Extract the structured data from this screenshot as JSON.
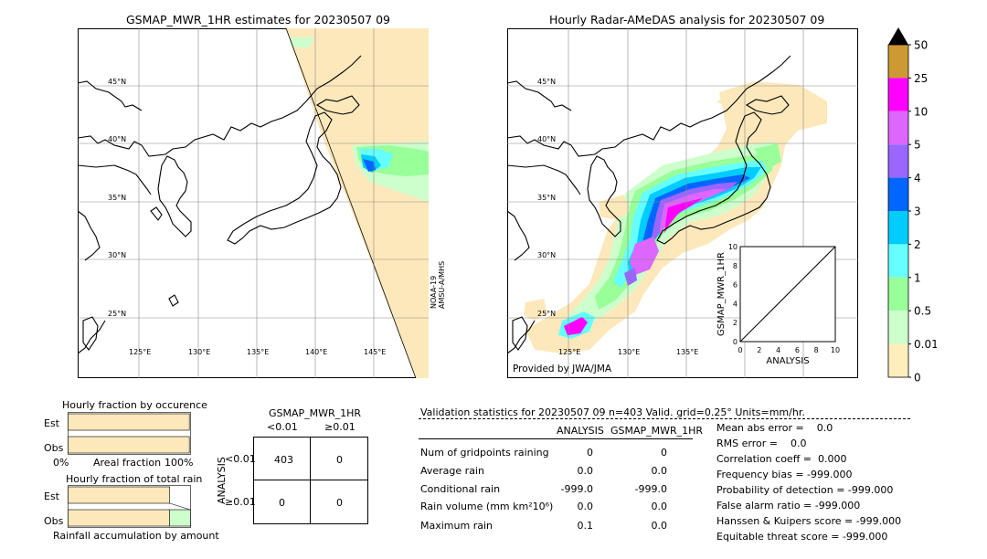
{
  "left_map": {
    "title": "GSMAP_MWR_1HR estimates for 20230507 09",
    "lat_labels": [
      "45°N",
      "40°N",
      "35°N",
      "30°N",
      "25°N"
    ],
    "lon_labels": [
      "125°E",
      "130°E",
      "135°E",
      "140°E",
      "145°E"
    ],
    "sensor_label": "NOAA-19\nAMSU-A/MHS"
  },
  "right_map": {
    "title": "Hourly Radar-AMeDAS analysis for 20230507 09",
    "lat_labels": [
      "45°N",
      "40°N",
      "35°N",
      "30°N",
      "25°N"
    ],
    "lon_labels": [
      "125°E",
      "130°E",
      "135°E"
    ],
    "credit": "Provided by JWA/JMA"
  },
  "colorbar": {
    "labels": [
      "50",
      "25",
      "10",
      "5",
      "4",
      "3",
      "2",
      "1",
      "0.5",
      "0.01",
      "0"
    ],
    "colors": [
      "#cc9933",
      "#ff00ff",
      "#dd66ff",
      "#9966ff",
      "#0066ff",
      "#00ccff",
      "#66ffff",
      "#99ff99",
      "#ccffcc",
      "#ffeebb"
    ]
  },
  "chart_data": [
    {
      "type": "scatter",
      "title": "",
      "xlabel": "ANALYSIS",
      "ylabel": "GSMAP_MWR_1HR",
      "xlim": [
        0,
        10
      ],
      "ylim": [
        0,
        10
      ],
      "x_ticks": [
        "0",
        "2",
        "4",
        "6",
        "8",
        "10"
      ],
      "y_ticks": [
        "0",
        "2",
        "4",
        "6",
        "8",
        "10"
      ],
      "reference_line": [
        [
          0,
          0
        ],
        [
          10,
          10
        ]
      ],
      "points": []
    },
    {
      "type": "bar",
      "title": "Hourly fraction by occurence",
      "categories": [
        "Est",
        "Obs"
      ],
      "values": [
        0.99,
        0.99
      ],
      "x_labels": [
        "0%",
        "Areal fraction",
        "100%"
      ]
    },
    {
      "type": "bar",
      "title": "Hourly fraction of total rain",
      "categories": [
        "Est",
        "Obs"
      ],
      "values": [
        0.83,
        0.83
      ],
      "x_labels": [
        "Rainfall accumulation by amount"
      ]
    }
  ],
  "contingency": {
    "title": "GSMAP_MWR_1HR",
    "col_headers": [
      "<0.01",
      "≥0.01"
    ],
    "row_label": "ANALYSIS",
    "row_headers": [
      "<0.01",
      "≥0.01"
    ],
    "cells": [
      [
        "403",
        "0"
      ],
      [
        "0",
        "0"
      ]
    ]
  },
  "validation": {
    "header": "Validation statistics for 20230507 09  n=403 Valid. grid=0.25° Units=mm/hr.",
    "col_analysis": "ANALYSIS",
    "col_gsmap": "GSMAP_MWR_1HR",
    "rows": [
      {
        "label": "Num of gridpoints raining",
        "a": "0",
        "g": "0"
      },
      {
        "label": "Average rain",
        "a": "0.0",
        "g": "0.0"
      },
      {
        "label": "Conditional rain",
        "a": "-999.0",
        "g": "-999.0"
      },
      {
        "label": "Rain volume (mm km²10⁶)",
        "a": "0.0",
        "g": "0.0"
      },
      {
        "label": "Maximum rain",
        "a": "0.1",
        "g": "0.0"
      }
    ],
    "scores": [
      "Mean abs error =    0.0",
      "RMS error =    0.0",
      "Correlation coeff =  0.000",
      "Frequency bias = -999.000",
      "Probability of detection = -999.000",
      "False alarm ratio = -999.000",
      "Hanssen & Kuipers score = -999.000",
      "Equitable threat score = -999.000"
    ]
  }
}
